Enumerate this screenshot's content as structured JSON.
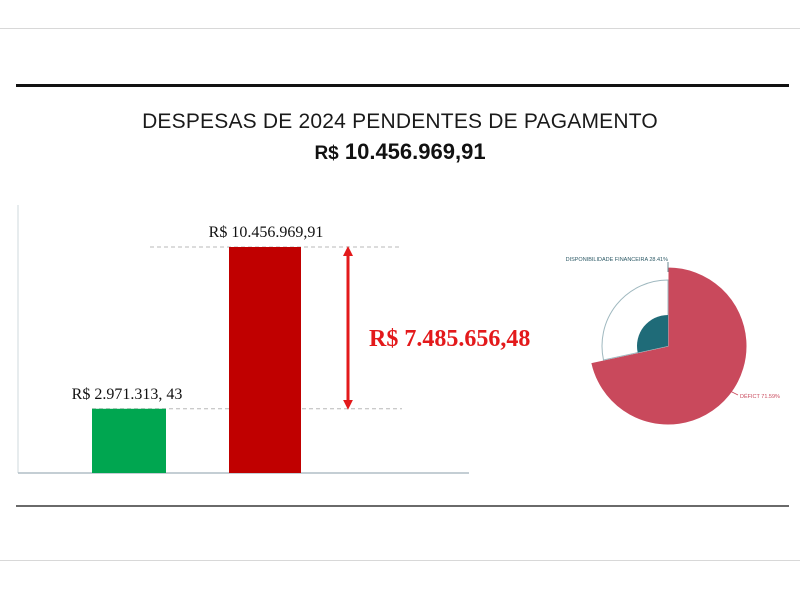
{
  "header": {
    "title": "DESPESAS DE 2024 PENDENTES DE PAGAMENTO",
    "total_currency": "R$",
    "total_value": "10.456.969,91"
  },
  "colors": {
    "green_bar": "#00a650",
    "red_bar": "#c00000",
    "difference": "#e3191b",
    "deficit": "#c9495c",
    "disponibilidade": "#ffffff",
    "center": "#1f6b78"
  },
  "chart_data": [
    {
      "type": "bar",
      "categories": [
        "",
        ""
      ],
      "values": [
        2971313.43,
        10456969.91
      ],
      "data_labels": [
        "R$ 2.971.313, 43",
        "R$ 10.456.969,91"
      ],
      "colors": [
        "#00a650",
        "#c00000"
      ],
      "ylim": [
        0,
        10456969.91
      ],
      "difference_label": "R$ 7.485.656,48",
      "difference_value": 7485656.48,
      "title": "",
      "xlabel": "",
      "ylabel": "",
      "grid": false
    },
    {
      "type": "pie",
      "labels": [
        "DISPONIBILIDADE FINANCEIRA 28.41%",
        "DÉFICT 71.59%"
      ],
      "values": [
        28.41,
        71.59
      ],
      "colors": [
        "#ffffff",
        "#c9495c"
      ],
      "title": ""
    }
  ]
}
